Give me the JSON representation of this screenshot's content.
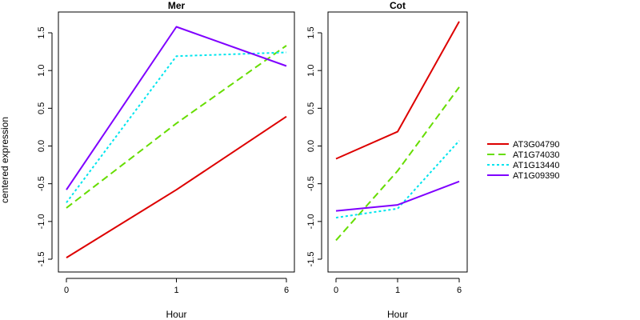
{
  "chart_data": {
    "type": "line",
    "ylabel": "centered expression",
    "xlabel": "Hour",
    "x_ticks": [
      "0",
      "1",
      "6"
    ],
    "y_ticks": [
      "-1.5",
      "-1.0",
      "-0.5",
      "0.0",
      "0.5",
      "1.0",
      "1.5"
    ],
    "ylim": [
      -1.5,
      1.65
    ],
    "legend_position": "right",
    "series_styles": [
      {
        "name": "AT3G04790",
        "color": "#dd0000",
        "dash": "solid"
      },
      {
        "name": "AT1G74030",
        "color": "#66dd00",
        "dash": "dashed"
      },
      {
        "name": "AT1G13440",
        "color": "#00e5ee",
        "dash": "dotted"
      },
      {
        "name": "AT1G09390",
        "color": "#7f00ff",
        "dash": "solid"
      }
    ],
    "panels": [
      {
        "title": "Mer",
        "series": [
          {
            "name": "AT3G04790",
            "values": [
              -1.48,
              -0.58,
              0.39
            ]
          },
          {
            "name": "AT1G74030",
            "values": [
              -0.82,
              0.3,
              1.33
            ]
          },
          {
            "name": "AT1G13440",
            "values": [
              -0.75,
              1.19,
              1.24
            ]
          },
          {
            "name": "AT1G09390",
            "values": [
              -0.58,
              1.58,
              1.06
            ]
          }
        ]
      },
      {
        "title": "Cot",
        "series": [
          {
            "name": "AT3G04790",
            "values": [
              -0.17,
              0.19,
              1.65
            ]
          },
          {
            "name": "AT1G74030",
            "values": [
              -1.25,
              -0.33,
              0.78
            ]
          },
          {
            "name": "AT1G13440",
            "values": [
              -0.95,
              -0.83,
              0.07
            ]
          },
          {
            "name": "AT1G09390",
            "values": [
              -0.86,
              -0.78,
              -0.47
            ]
          }
        ]
      }
    ]
  }
}
